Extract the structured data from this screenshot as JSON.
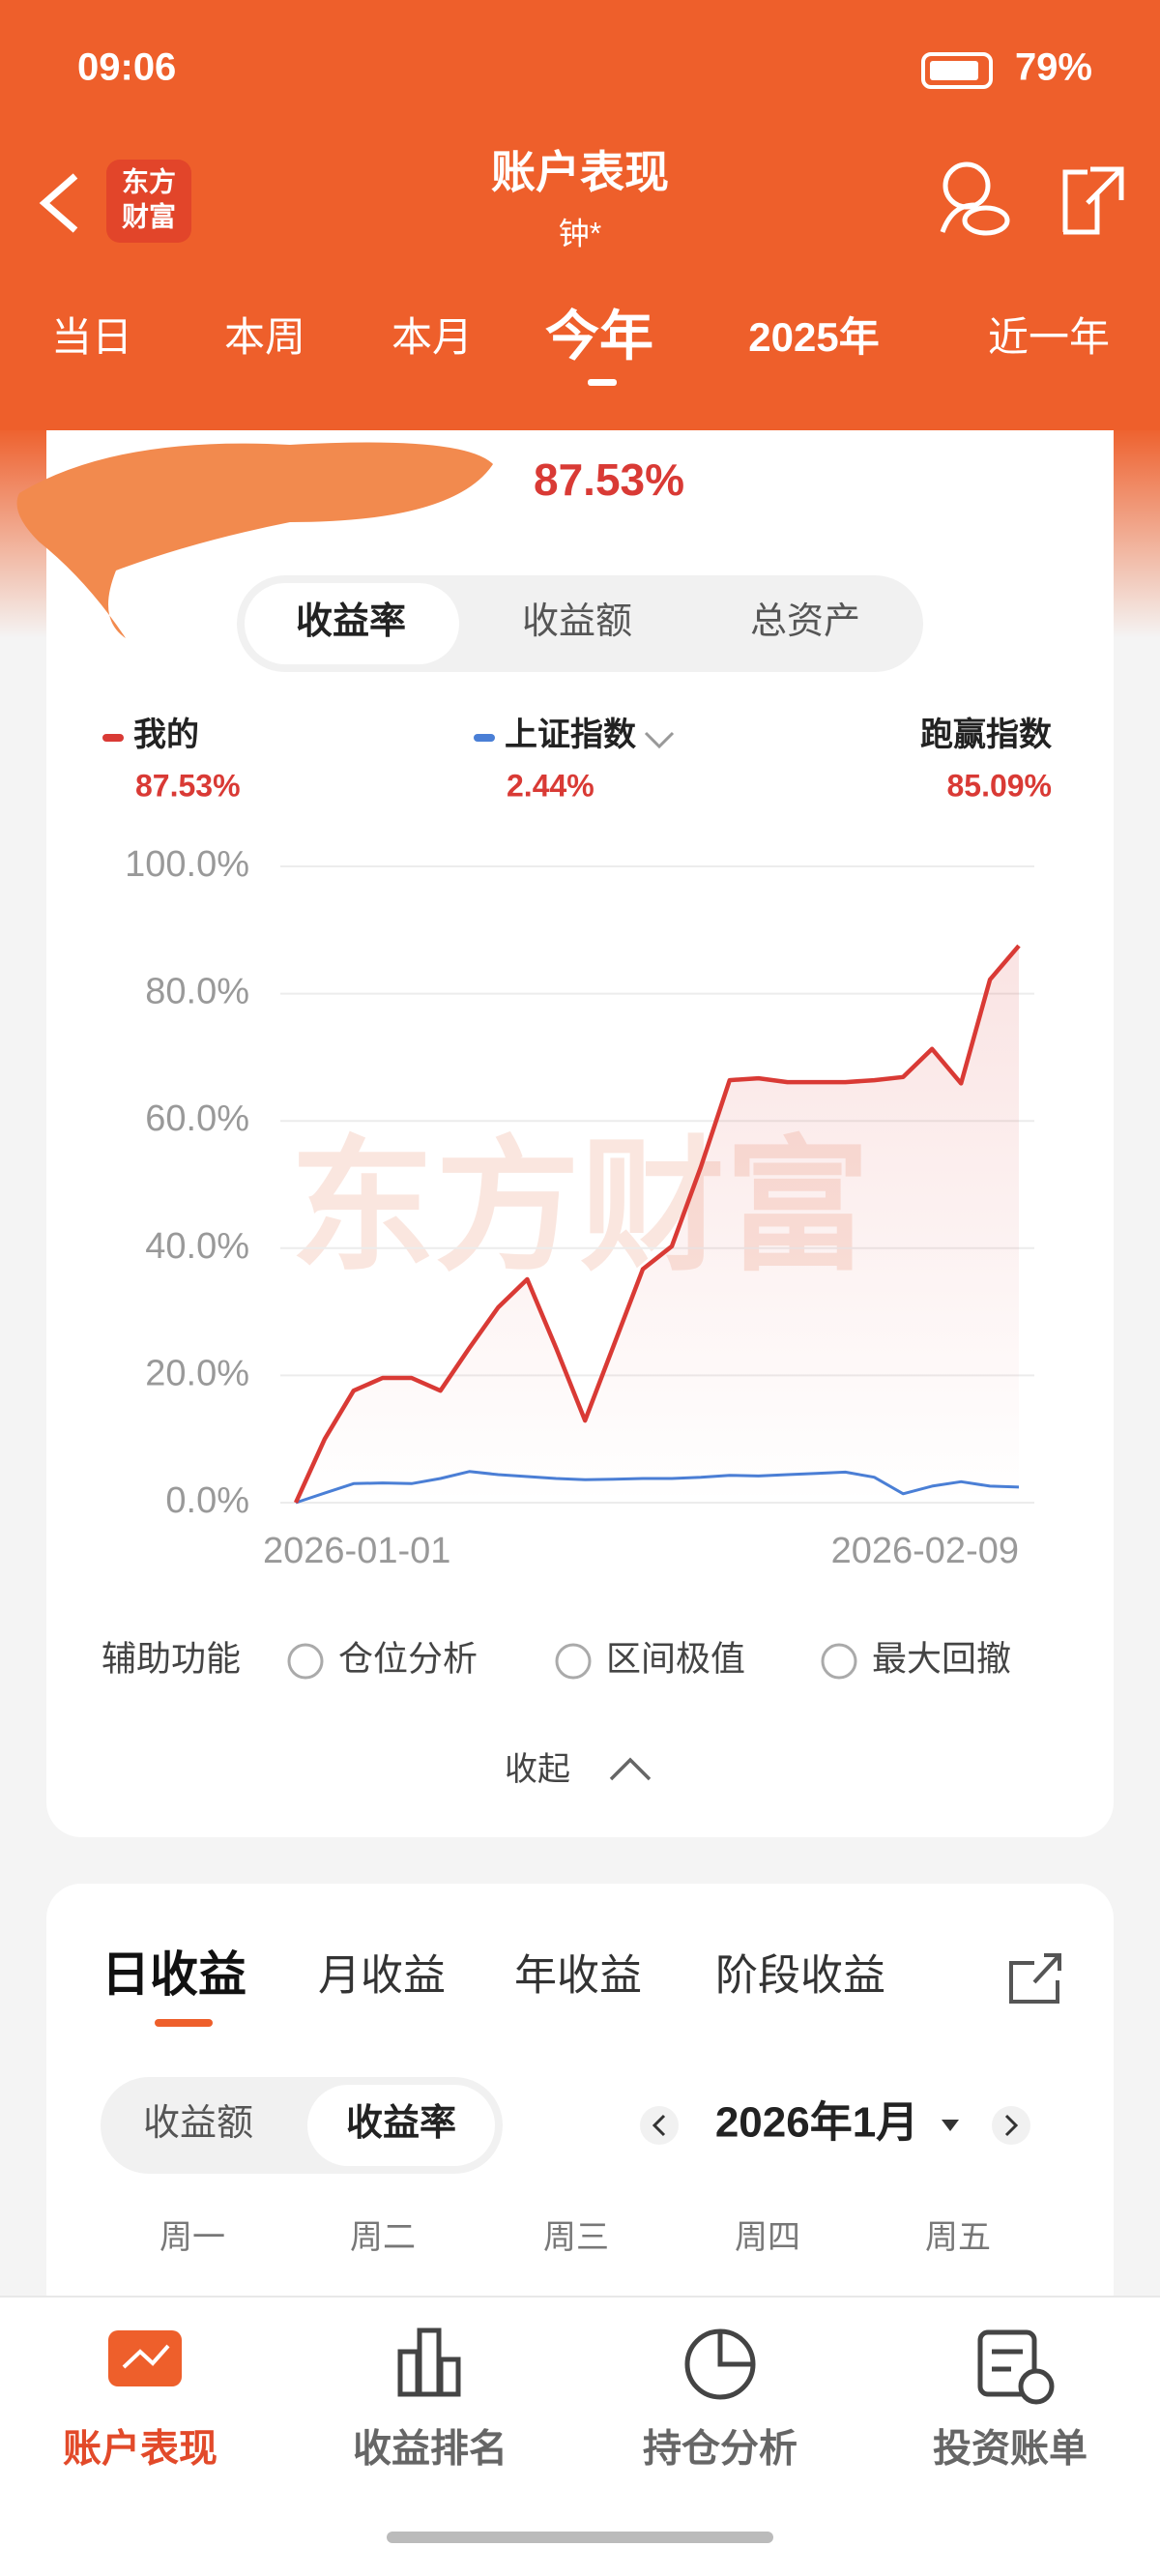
{
  "status_bar": {
    "time": "09:06",
    "battery": "79%"
  },
  "header": {
    "title": "账户表现",
    "subtitle": "钟*",
    "logo": [
      "东方",
      "财富"
    ]
  },
  "period_tabs": [
    "当日",
    "本周",
    "本月",
    "今年",
    "2025年",
    "近一年"
  ],
  "summary": {
    "total_return": "87.53%"
  },
  "metric_tabs": [
    "收益率",
    "收益额",
    "总资产"
  ],
  "legend_values": [
    "87.53%",
    "2.44%",
    "85.09%"
  ],
  "excess_label": "跑赢指数",
  "chart_data": {
    "type": "line",
    "watermark": "东方财富",
    "categories": [
      "2026-01-01",
      null,
      null,
      null,
      null,
      null,
      null,
      null,
      null,
      null,
      null,
      null,
      null,
      null,
      null,
      null,
      null,
      null,
      null,
      null,
      null,
      null,
      null,
      null,
      null,
      "2026-02-09"
    ],
    "series": [
      {
        "name": "我的",
        "color": "#d93a35",
        "values": [
          0,
          10,
          17.6,
          19.6,
          19.6,
          17.6,
          24.3,
          30.7,
          35.1,
          24.3,
          12.9,
          24.8,
          36.7,
          40.3,
          52.7,
          66.4,
          66.7,
          66.1,
          66.1,
          66.1,
          66.4,
          66.9,
          71.3,
          65.9,
          82.2,
          87.53
        ]
      },
      {
        "name": "上证指数",
        "color": "#4a7fd6",
        "values": [
          0,
          1.5,
          3,
          3.1,
          3,
          3.8,
          4.9,
          4.4,
          4.1,
          3.8,
          3.6,
          3.7,
          3.8,
          3.8,
          4,
          4.3,
          4.2,
          4.4,
          4.6,
          4.8,
          4,
          1.4,
          2.6,
          3.3,
          2.6,
          2.44
        ]
      }
    ],
    "ylim": [
      0,
      100
    ],
    "yticks": [
      {
        "value": 0,
        "label": "0.0%"
      },
      {
        "value": 20,
        "label": "20.0%"
      },
      {
        "value": 40,
        "label": "40.0%"
      },
      {
        "value": 60,
        "label": "60.0%"
      },
      {
        "value": 80,
        "label": "80.0%"
      },
      {
        "value": 100,
        "label": "100.0%"
      }
    ],
    "grid": true
  },
  "tools": {
    "label": "辅助功能",
    "options": [
      "仓位分析",
      "区间极值",
      "最大回撤"
    ]
  },
  "collapse": "收起",
  "income_tabs": [
    "日收益",
    "月收益",
    "年收益",
    "阶段收益"
  ],
  "income_toggle": [
    "收益额",
    "收益率"
  ],
  "month": "2026年1月",
  "weekdays": [
    "周一",
    "周二",
    "周三",
    "周四",
    "周五"
  ],
  "bottom_nav": [
    "账户表现",
    "收益排名",
    "持仓分析",
    "投资账单"
  ]
}
